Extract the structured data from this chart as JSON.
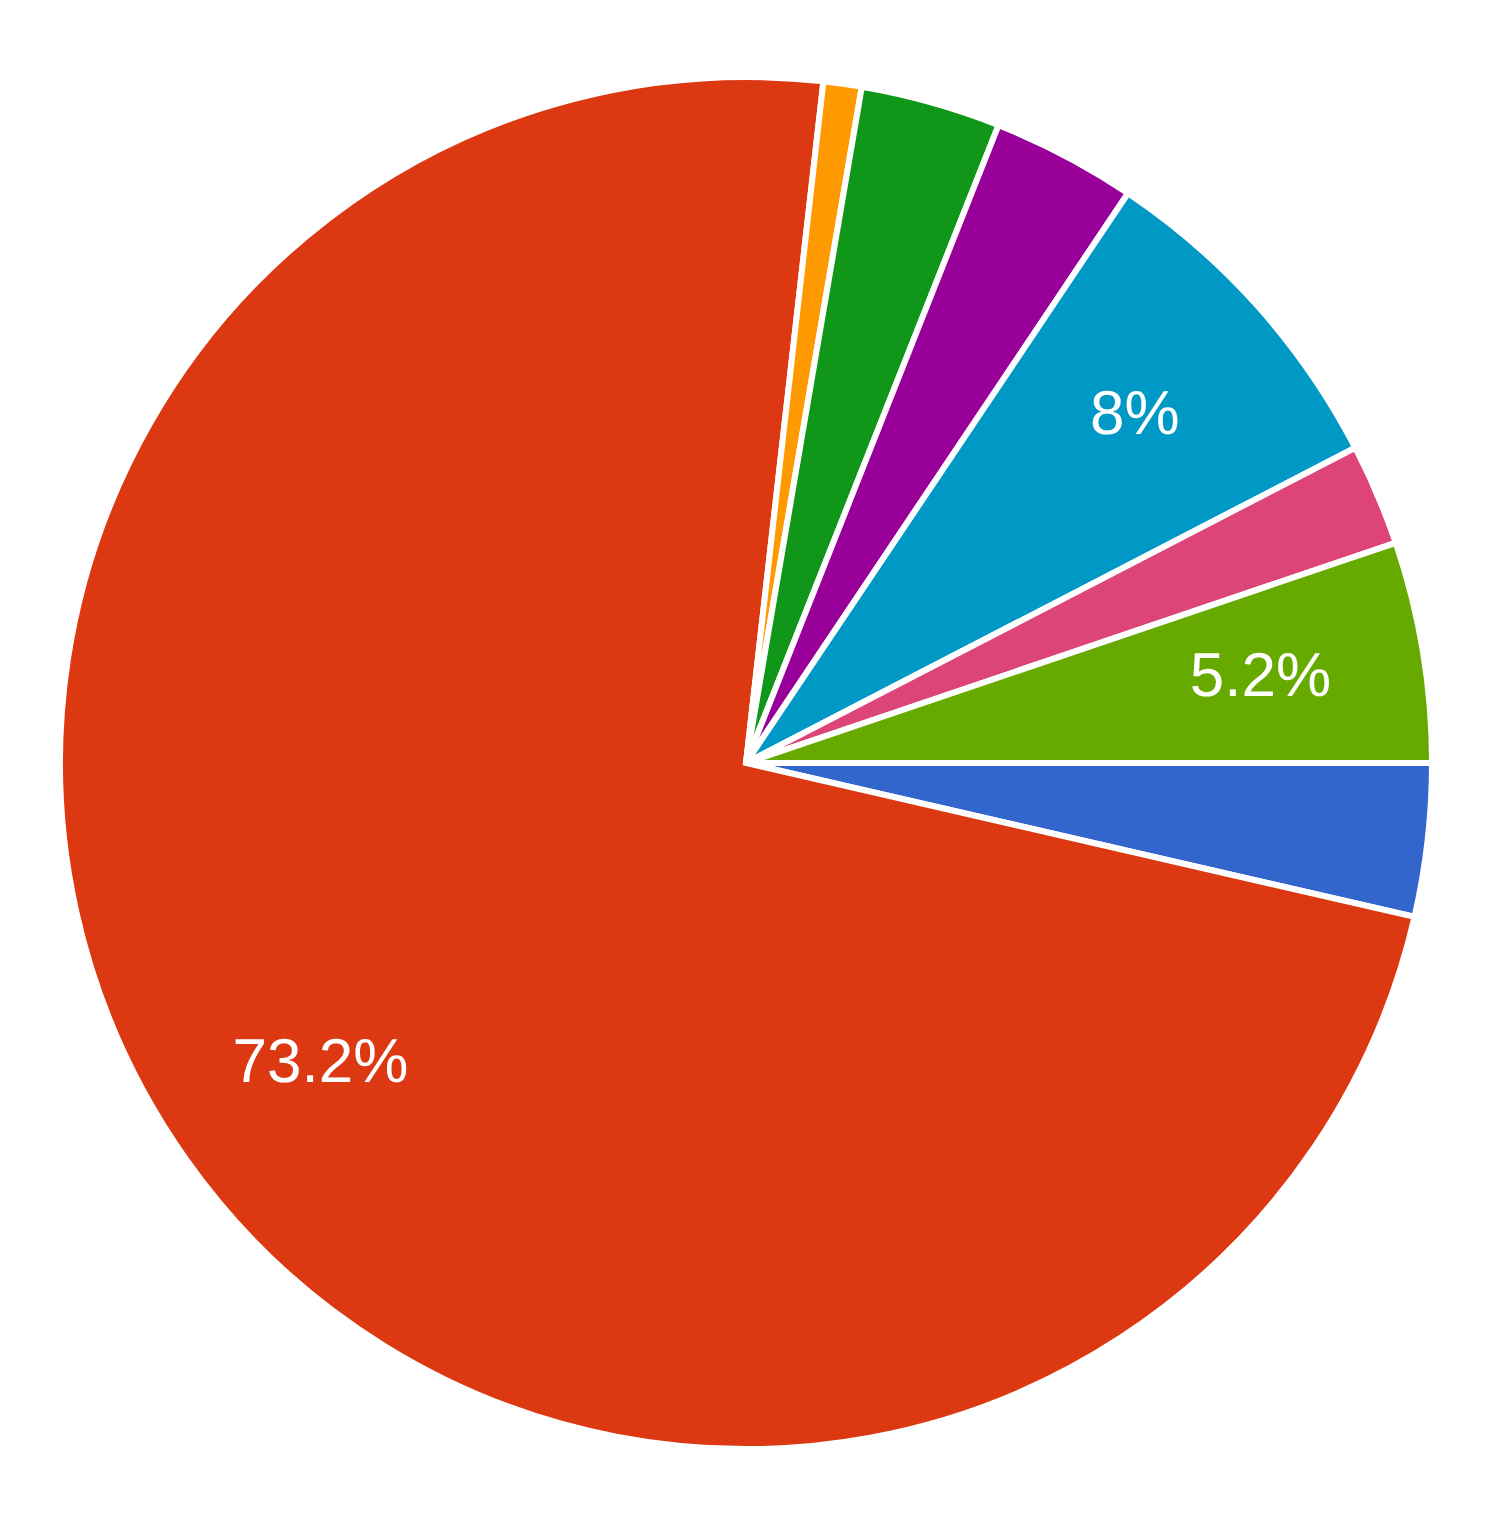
{
  "chart_data": {
    "type": "pie",
    "categories": [
      null,
      null,
      null,
      null,
      null,
      null,
      null,
      null
    ],
    "values": [
      3.6,
      73.2,
      0.9,
      3.3,
      3.4,
      8,
      2.4,
      5.2
    ],
    "colors": [
      "#3366cc",
      "#dc3912",
      "#ff9900",
      "#109618",
      "#990099",
      "#0099c6",
      "#dd4477",
      "#66aa00"
    ],
    "value_labels": [
      null,
      "73.2%",
      null,
      null,
      null,
      "8%",
      null,
      "5.2%"
    ]
  }
}
